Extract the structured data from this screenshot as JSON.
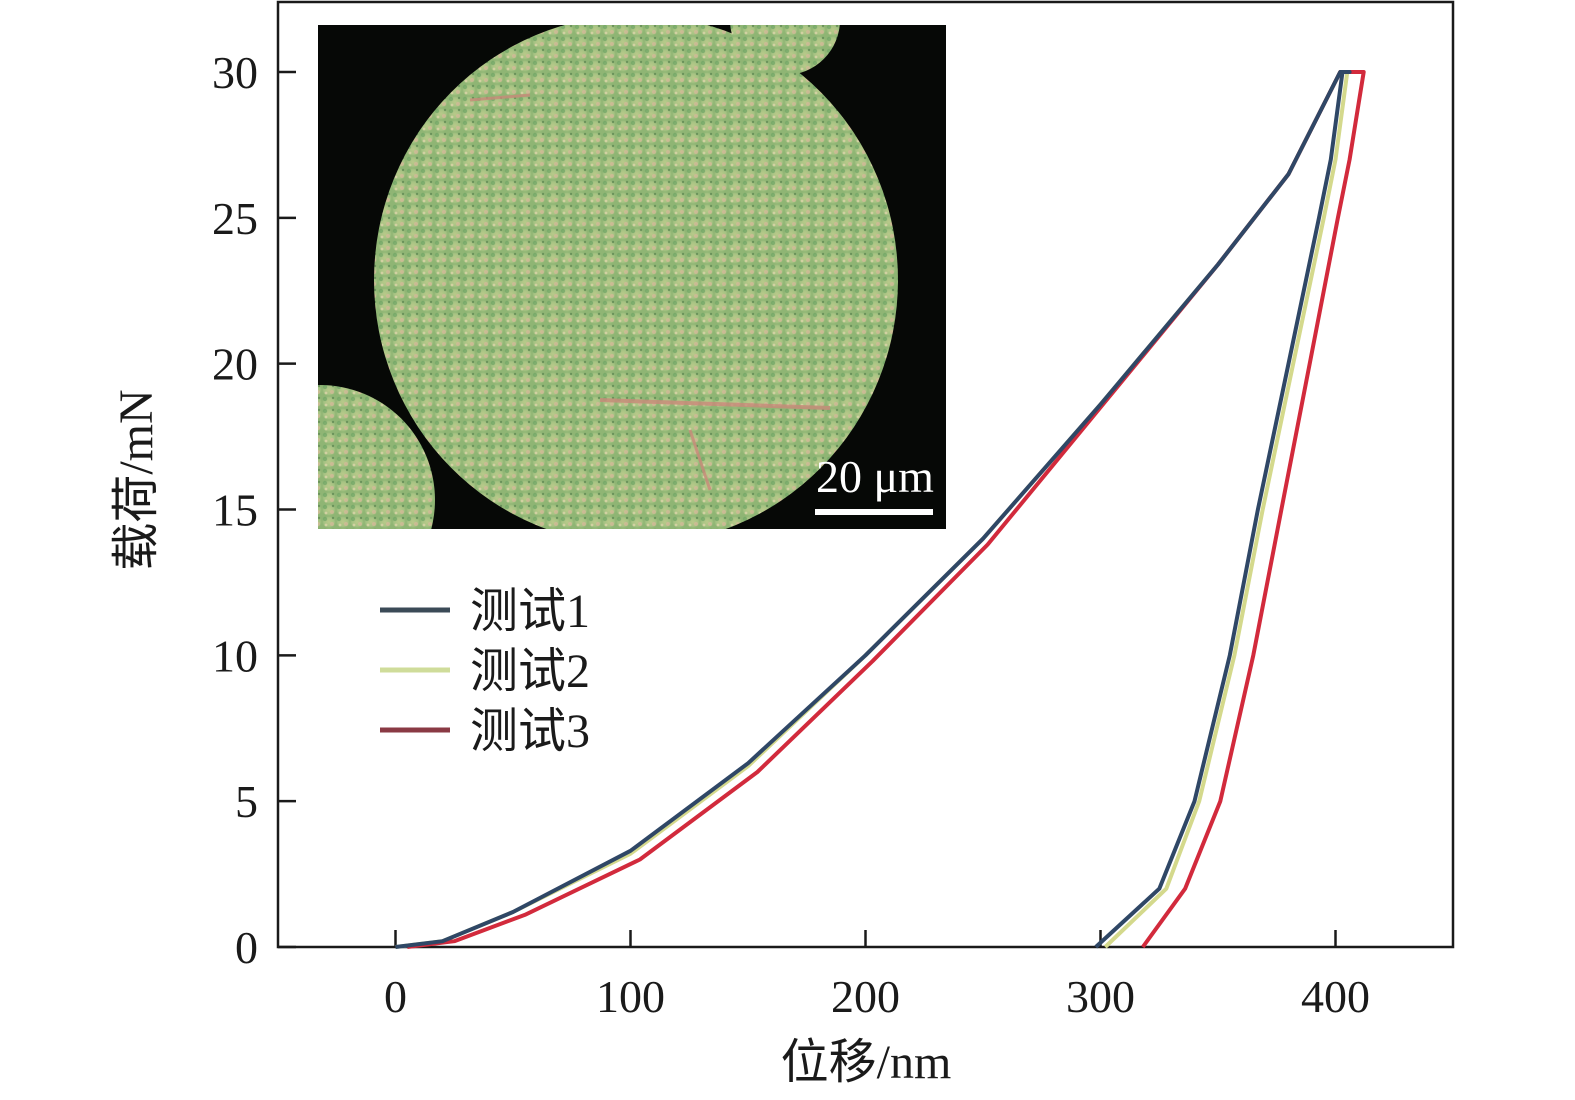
{
  "chart_data": {
    "type": "line",
    "xlabel": "位移/nm",
    "ylabel": "载荷/mN",
    "xlim": [
      -50,
      450
    ],
    "ylim": [
      0,
      32.4
    ],
    "x_ticks": [
      0,
      100,
      200,
      300,
      400
    ],
    "y_ticks": [
      0,
      5,
      10,
      15,
      20,
      25,
      30
    ],
    "grid": false,
    "legend_placement": "center-left",
    "series": [
      {
        "name": "测试1",
        "color": "#2f4766",
        "legend_color": "#3b4a57",
        "points": [
          [
            0,
            0
          ],
          [
            20,
            0.2
          ],
          [
            50,
            1.2
          ],
          [
            100,
            3.3
          ],
          [
            150,
            6.3
          ],
          [
            200,
            10
          ],
          [
            250,
            14
          ],
          [
            300,
            18.6
          ],
          [
            350,
            23.4
          ],
          [
            380,
            26.5
          ],
          [
            402,
            30
          ],
          [
            406,
            30
          ],
          [
            403,
            30
          ],
          [
            398,
            27
          ],
          [
            393,
            25
          ],
          [
            380,
            20
          ],
          [
            367,
            15
          ],
          [
            355,
            10
          ],
          [
            340,
            5
          ],
          [
            325,
            2
          ],
          [
            298,
            0
          ]
        ]
      },
      {
        "name": "测试2",
        "color": "#d4d98c",
        "legend_color": "#cfdc9a",
        "points": [
          [
            0,
            0
          ],
          [
            20,
            0.2
          ],
          [
            50,
            1.2
          ],
          [
            100,
            3.2
          ],
          [
            150,
            6.2
          ],
          [
            200,
            10
          ],
          [
            250,
            14
          ],
          [
            300,
            18.6
          ],
          [
            350,
            23.4
          ],
          [
            380,
            26.5
          ],
          [
            402,
            30
          ],
          [
            409,
            30
          ],
          [
            405,
            30
          ],
          [
            400,
            27
          ],
          [
            395,
            25
          ],
          [
            382,
            20
          ],
          [
            369,
            15
          ],
          [
            357,
            10
          ],
          [
            342,
            5
          ],
          [
            328,
            2
          ],
          [
            302,
            0
          ]
        ]
      },
      {
        "name": "测试3",
        "color": "#d22a3c",
        "legend_color": "#8a3a44",
        "points": [
          [
            5,
            0
          ],
          [
            25,
            0.2
          ],
          [
            55,
            1.1
          ],
          [
            104,
            3.0
          ],
          [
            154,
            6.0
          ],
          [
            203,
            9.8
          ],
          [
            252,
            13.8
          ],
          [
            300,
            18.5
          ],
          [
            350,
            23.4
          ],
          [
            380,
            26.5
          ],
          [
            402,
            30
          ],
          [
            412,
            30
          ],
          [
            412,
            30
          ],
          [
            406,
            27
          ],
          [
            401,
            25
          ],
          [
            389,
            20
          ],
          [
            377,
            15
          ],
          [
            365,
            10
          ],
          [
            351,
            5
          ],
          [
            336,
            2
          ],
          [
            318,
            0
          ]
        ]
      }
    ],
    "inset": {
      "scale_bar_label": "20 μm"
    }
  }
}
